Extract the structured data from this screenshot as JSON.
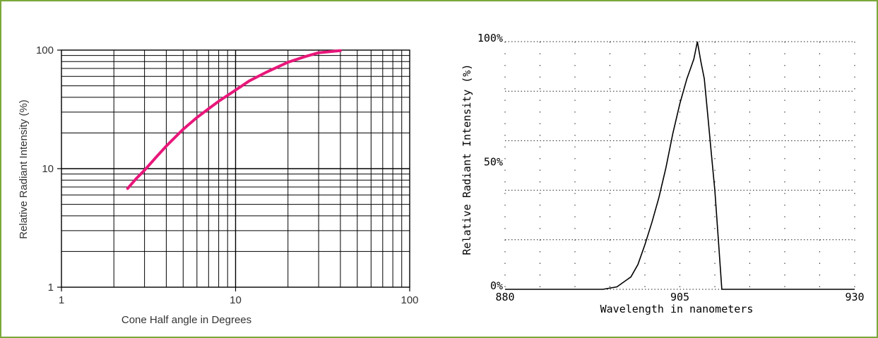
{
  "frame_color": "#7aa83a",
  "chart_data": [
    {
      "type": "line",
      "xlabel": "Cone Half angle in Degrees",
      "ylabel": "Relative Radiant Intensity (%)",
      "x_scale": "log",
      "y_scale": "log",
      "xlim": [
        1,
        100
      ],
      "ylim": [
        1,
        100
      ],
      "x_ticks": [
        "1",
        "10",
        "100"
      ],
      "y_ticks": [
        "1",
        "10",
        "100"
      ],
      "grid": true,
      "series_color": "#e8177a",
      "series": [
        {
          "x": [
            2.4,
            2.7,
            3,
            3.5,
            4,
            5,
            6,
            7,
            8,
            10,
            12,
            15,
            20,
            25,
            30,
            40
          ],
          "y": [
            6.8,
            8.3,
            9.7,
            12.5,
            15.5,
            21.5,
            27,
            32,
            37,
            46,
            55,
            65,
            79,
            88,
            95,
            99
          ]
        }
      ]
    },
    {
      "type": "line",
      "xlabel": "Wavelength in nanometers",
      "ylabel": "Relative Radiant Intensity (%)",
      "xlim": [
        880,
        930
      ],
      "ylim": [
        0,
        100
      ],
      "x_ticks": [
        "880",
        "905",
        "930"
      ],
      "y_ticks": [
        "0%",
        "50%",
        "100%"
      ],
      "grid": "dotted",
      "series_color": "#000000",
      "series": [
        {
          "x": [
            880,
            890,
            894,
            896,
            898,
            899,
            900,
            901,
            902,
            903,
            904,
            905,
            906,
            906.5,
            907,
            907.5,
            908,
            908.5,
            909,
            909.5,
            910,
            910.5,
            911,
            930
          ],
          "y": [
            0,
            0,
            0,
            1,
            5,
            10,
            18,
            27,
            37,
            49,
            63,
            75,
            85,
            89,
            93,
            100,
            92,
            85,
            70,
            55,
            40,
            20,
            0,
            0
          ]
        }
      ]
    }
  ]
}
